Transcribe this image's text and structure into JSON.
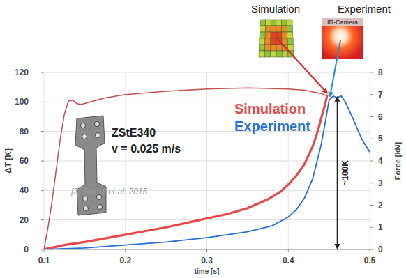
{
  "chart_data": {
    "type": "line",
    "x_label": "time [s]",
    "y_label": "ΔT [K]",
    "y2_label": "Force [kN]",
    "xlim": [
      0.1,
      0.5
    ],
    "xticks": [
      0.1,
      0.2,
      0.3,
      0.4,
      0.5
    ],
    "ylim": [
      0,
      120
    ],
    "yticks": [
      0,
      20,
      40,
      60,
      80,
      100,
      120
    ],
    "y2lim": [
      0,
      8
    ],
    "y2ticks": [
      0,
      1,
      2,
      3,
      4,
      5,
      6,
      7,
      8
    ],
    "grid": true,
    "series": [
      {
        "name": "Simulation",
        "color": "#e8484a",
        "x": [
          0.1,
          0.125,
          0.15,
          0.175,
          0.2,
          0.225,
          0.25,
          0.275,
          0.3,
          0.325,
          0.35,
          0.375,
          0.39,
          0.4,
          0.41,
          0.42,
          0.43,
          0.435,
          0.44,
          0.445,
          0.448
        ],
        "values": [
          0,
          3,
          5,
          7.5,
          10,
          12.5,
          15,
          18,
          21,
          24,
          28,
          34,
          39,
          44,
          50,
          58,
          70,
          78,
          88,
          98,
          105
        ]
      },
      {
        "name": "Experiment",
        "color": "#2a6fd0",
        "x": [
          0.1,
          0.15,
          0.2,
          0.25,
          0.3,
          0.35,
          0.38,
          0.4,
          0.41,
          0.42,
          0.43,
          0.44,
          0.445,
          0.45,
          0.455,
          0.46,
          0.465,
          0.47,
          0.475,
          0.48,
          0.49,
          0.5
        ],
        "values": [
          0,
          1,
          3,
          5,
          8,
          12,
          16,
          22,
          27,
          35,
          48,
          70,
          85,
          101,
          104,
          103,
          104,
          100,
          94,
          88,
          75,
          66
        ]
      },
      {
        "color": "#c0504d",
        "axis": "y2",
        "x": [
          0.1,
          0.105,
          0.11,
          0.115,
          0.12,
          0.125,
          0.13,
          0.135,
          0.14,
          0.145,
          0.15,
          0.175,
          0.2,
          0.25,
          0.3,
          0.35,
          0.4,
          0.42,
          0.44,
          0.447
        ],
        "values": [
          0,
          1.0,
          2.2,
          3.6,
          5.0,
          6.1,
          6.7,
          6.75,
          6.6,
          6.55,
          6.6,
          6.85,
          7.0,
          7.15,
          7.25,
          7.3,
          7.25,
          7.2,
          7.05,
          6.95
        ]
      }
    ],
    "annotations": [
      "ZStE340",
      "v = 0.025 m/s",
      "[2] Trondl et al. 2015",
      "~100K"
    ],
    "inset_labels": [
      "Simulation",
      "Experiment",
      "IR-Camera"
    ]
  }
}
